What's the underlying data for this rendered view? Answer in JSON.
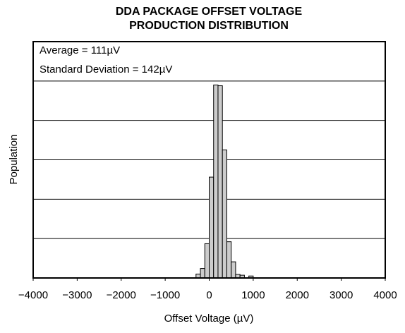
{
  "chart_data": {
    "type": "histogram",
    "title": [
      "DDA PACKAGE OFFSET VOLTAGE",
      "PRODUCTION DISTRIBUTION"
    ],
    "annotations": [
      "Average = 111µV",
      "Standard Deviation = 142µV"
    ],
    "x_label": "Offset Voltage (µV)",
    "y_label": "Population",
    "bins": [
      -300,
      -200,
      -100,
      0,
      100,
      200,
      300,
      400,
      500,
      600,
      700,
      800,
      900,
      1000
    ],
    "values": [
      0.1,
      0.24,
      0.87,
      2.56,
      4.9,
      4.88,
      3.25,
      0.92,
      0.41,
      0.09,
      0.07,
      0,
      0.05
    ],
    "color": "#cccccc",
    "xlim": [
      -4000,
      4000
    ],
    "xticks": [
      {
        "value": -4000,
        "label": "−4000"
      },
      {
        "value": -3000,
        "label": "−3000"
      },
      {
        "value": -2000,
        "label": "−2000"
      },
      {
        "value": -1000,
        "label": "−1000"
      },
      0,
      1000,
      2000,
      3000,
      4000
    ],
    "ylim": [
      0,
      6
    ],
    "yticks": [
      1,
      2,
      3,
      4,
      5
    ],
    "grid": true
  }
}
